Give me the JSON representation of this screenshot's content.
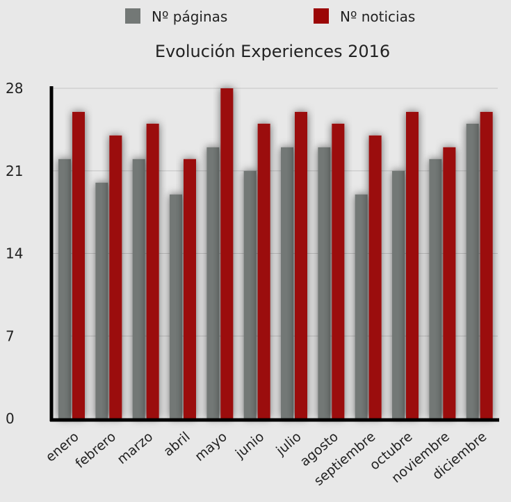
{
  "chart_data": {
    "type": "bar",
    "title": "Evolución Experiences 2016",
    "xlabel": "",
    "ylabel": "",
    "ylim": [
      0,
      28
    ],
    "yticks": [
      0,
      7,
      14,
      21,
      28
    ],
    "grid": true,
    "legend_position": "top",
    "categories": [
      "enero",
      "febrero",
      "marzo",
      "abril",
      "mayo",
      "junio",
      "julio",
      "agosto",
      "septiembre",
      "octubre",
      "noviembre",
      "diciembre"
    ],
    "series": [
      {
        "name": "Nº páginas",
        "color": "#737876",
        "values": [
          22,
          20,
          22,
          19,
          23,
          21,
          23,
          23,
          19,
          21,
          22,
          25
        ]
      },
      {
        "name": "Nº noticias",
        "color": "#9b0707",
        "values": [
          26,
          24,
          25,
          22,
          28,
          25,
          26,
          25,
          24,
          26,
          23,
          26
        ]
      }
    ]
  }
}
